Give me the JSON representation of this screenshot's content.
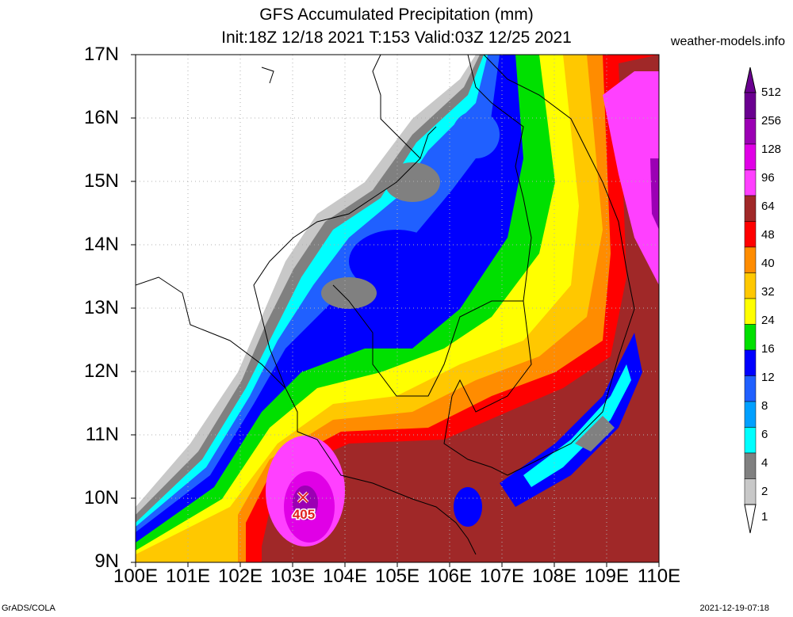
{
  "title": {
    "line1": "GFS Accumulated Precipitation (mm)",
    "line2": "Init:18Z 12/18 2021 T:153 Valid:03Z 12/25 2021"
  },
  "source": "weather-models.info",
  "footer": {
    "left": "GrADS/COLA",
    "right": "2021-12-19-07:18"
  },
  "map": {
    "lat_labels": [
      "17N",
      "16N",
      "15N",
      "14N",
      "13N",
      "12N",
      "11N",
      "10N",
      "9N"
    ],
    "lon_labels": [
      "100E",
      "101E",
      "102E",
      "103E",
      "104E",
      "105E",
      "106E",
      "107E",
      "108E",
      "109E",
      "110E"
    ],
    "max_marker": {
      "label": "405",
      "lon": 103.2,
      "lat": 10.0
    }
  },
  "colorbar": {
    "levels": [
      "512",
      "256",
      "128",
      "96",
      "64",
      "48",
      "40",
      "32",
      "24",
      "16",
      "12",
      "8",
      "6",
      "4",
      "2",
      "1"
    ],
    "colors": [
      "#6a0090",
      "#9b00b4",
      "#e000e6",
      "#ff40ff",
      "#a02828",
      "#ff0000",
      "#ff8c00",
      "#ffc800",
      "#ffff00",
      "#00e000",
      "#0000ff",
      "#2060ff",
      "#00a0ff",
      "#00ffff",
      "#808080",
      "#c8c8c8"
    ]
  }
}
